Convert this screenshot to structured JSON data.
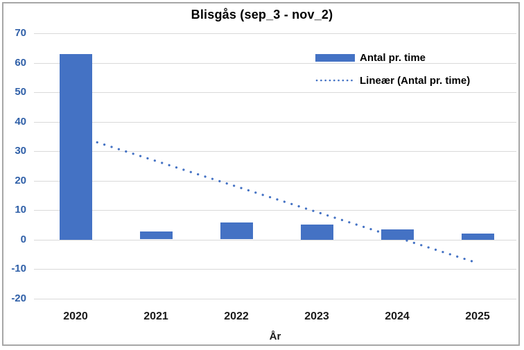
{
  "chart_data": {
    "type": "bar",
    "title": "Blisgås (sep_3 - nov_2)",
    "categories": [
      "2020",
      "2021",
      "2022",
      "2023",
      "2024",
      "2025"
    ],
    "series": [
      {
        "name": "Antal pr. time",
        "values": [
          63,
          2.8,
          5.8,
          5,
          3.5,
          2
        ]
      }
    ],
    "trendline": {
      "name": "Lineær (Antal pr. time)",
      "style": "dotted",
      "start_value": 35.3,
      "end_value": -8.0
    },
    "xlabel": "År",
    "ylabel": "",
    "ylim": [
      -20,
      70
    ],
    "ytick_step": 10,
    "yticks": [
      70,
      60,
      50,
      40,
      30,
      20,
      10,
      0,
      -10,
      -20
    ],
    "grid": "horizontal",
    "legend_position": "top-right"
  },
  "colors": {
    "bar": "#4472C4",
    "trendline": "#4472C4",
    "axis_labels": "#3060A8",
    "gridline": "#D9D9D9",
    "title": "#000000",
    "chart_border": "#A6A6A6"
  }
}
